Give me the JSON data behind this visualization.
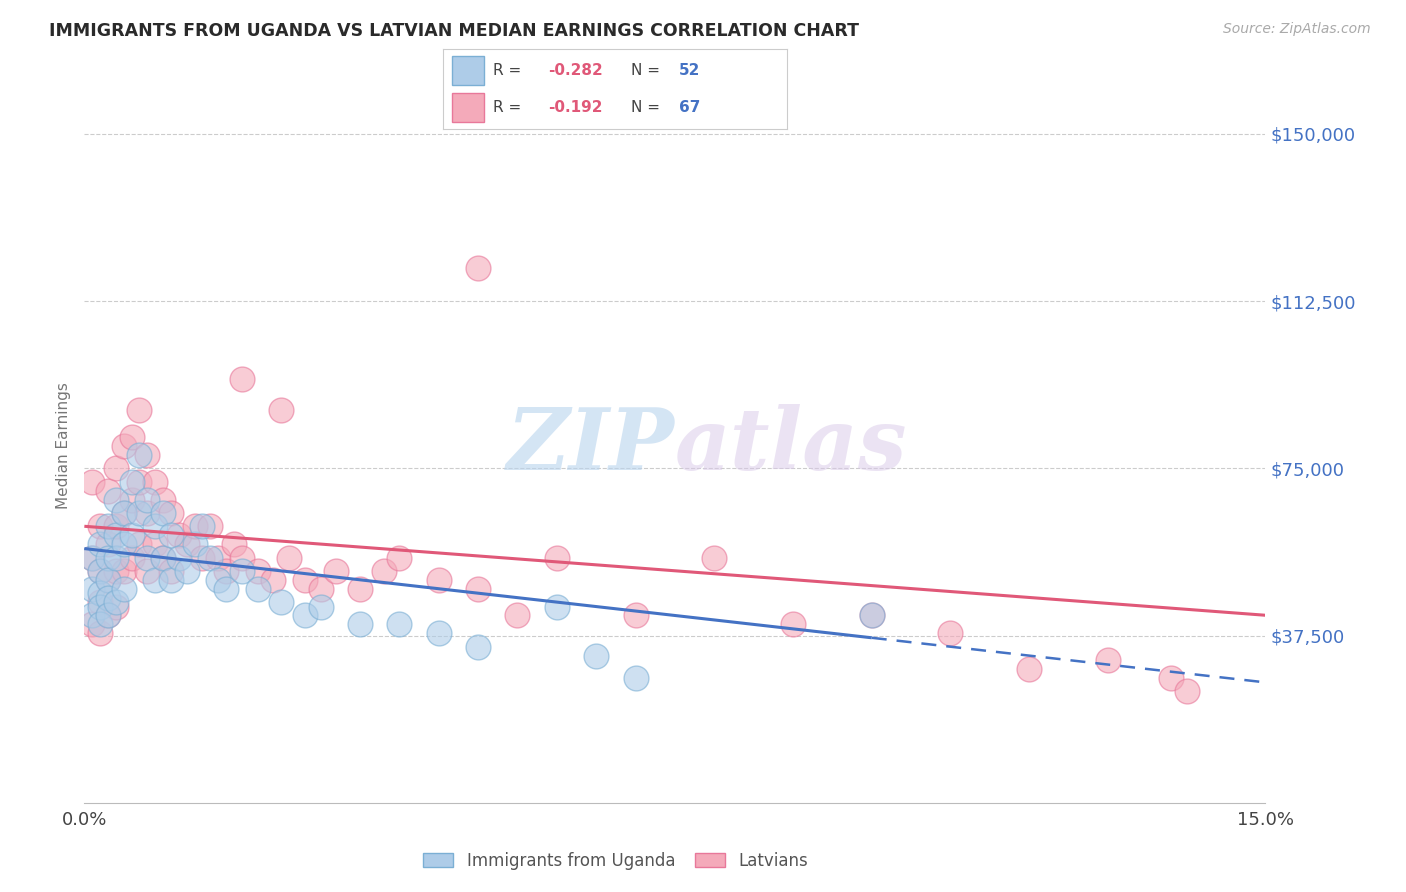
{
  "title": "IMMIGRANTS FROM UGANDA VS LATVIAN MEDIAN EARNINGS CORRELATION CHART",
  "source": "Source: ZipAtlas.com",
  "ylabel": "Median Earnings",
  "yticks": [
    0,
    37500,
    75000,
    112500,
    150000
  ],
  "ytick_labels": [
    "",
    "$37,500",
    "$75,000",
    "$112,500",
    "$150,000"
  ],
  "xmin": 0.0,
  "xmax": 0.15,
  "ymin": 0,
  "ymax": 160000,
  "blue_edge_color": "#7bafd4",
  "blue_face_color": "#aecce8",
  "pink_edge_color": "#e8789a",
  "pink_face_color": "#f4aaba",
  "blue_line_color": "#4472c4",
  "pink_line_color": "#e05878",
  "watermark_zip": "ZIP",
  "watermark_atlas": "atlas",
  "title_color": "#2a2a2a",
  "ytick_color": "#4472c4",
  "blue_scatter_x": [
    0.001,
    0.001,
    0.001,
    0.002,
    0.002,
    0.002,
    0.002,
    0.002,
    0.003,
    0.003,
    0.003,
    0.003,
    0.003,
    0.004,
    0.004,
    0.004,
    0.004,
    0.005,
    0.005,
    0.005,
    0.006,
    0.006,
    0.007,
    0.007,
    0.008,
    0.008,
    0.009,
    0.009,
    0.01,
    0.01,
    0.011,
    0.011,
    0.012,
    0.013,
    0.014,
    0.015,
    0.016,
    0.017,
    0.018,
    0.02,
    0.022,
    0.025,
    0.028,
    0.03,
    0.035,
    0.04,
    0.045,
    0.05,
    0.06,
    0.065,
    0.07,
    0.1
  ],
  "blue_scatter_y": [
    55000,
    48000,
    42000,
    58000,
    52000,
    47000,
    44000,
    40000,
    62000,
    55000,
    50000,
    46000,
    42000,
    68000,
    60000,
    55000,
    45000,
    65000,
    58000,
    48000,
    72000,
    60000,
    78000,
    65000,
    68000,
    55000,
    62000,
    50000,
    65000,
    55000,
    60000,
    50000,
    55000,
    52000,
    58000,
    62000,
    55000,
    50000,
    48000,
    52000,
    48000,
    45000,
    42000,
    44000,
    40000,
    40000,
    38000,
    35000,
    44000,
    33000,
    28000,
    42000
  ],
  "pink_scatter_x": [
    0.001,
    0.001,
    0.001,
    0.002,
    0.002,
    0.002,
    0.002,
    0.003,
    0.003,
    0.003,
    0.003,
    0.004,
    0.004,
    0.004,
    0.004,
    0.005,
    0.005,
    0.005,
    0.006,
    0.006,
    0.006,
    0.007,
    0.007,
    0.007,
    0.008,
    0.008,
    0.008,
    0.009,
    0.009,
    0.01,
    0.01,
    0.011,
    0.011,
    0.012,
    0.013,
    0.014,
    0.015,
    0.016,
    0.017,
    0.018,
    0.019,
    0.02,
    0.022,
    0.024,
    0.026,
    0.028,
    0.03,
    0.032,
    0.035,
    0.038,
    0.04,
    0.045,
    0.05,
    0.055,
    0.06,
    0.07,
    0.08,
    0.09,
    0.1,
    0.11,
    0.12,
    0.13,
    0.138,
    0.14,
    0.05,
    0.02,
    0.025
  ],
  "pink_scatter_y": [
    72000,
    55000,
    40000,
    62000,
    52000,
    45000,
    38000,
    70000,
    58000,
    50000,
    42000,
    75000,
    62000,
    52000,
    44000,
    80000,
    65000,
    52000,
    82000,
    68000,
    55000,
    88000,
    72000,
    58000,
    78000,
    65000,
    52000,
    72000,
    58000,
    68000,
    55000,
    65000,
    52000,
    60000,
    58000,
    62000,
    55000,
    62000,
    55000,
    52000,
    58000,
    55000,
    52000,
    50000,
    55000,
    50000,
    48000,
    52000,
    48000,
    52000,
    55000,
    50000,
    48000,
    42000,
    55000,
    42000,
    55000,
    40000,
    42000,
    38000,
    30000,
    32000,
    28000,
    25000,
    120000,
    95000,
    88000
  ]
}
